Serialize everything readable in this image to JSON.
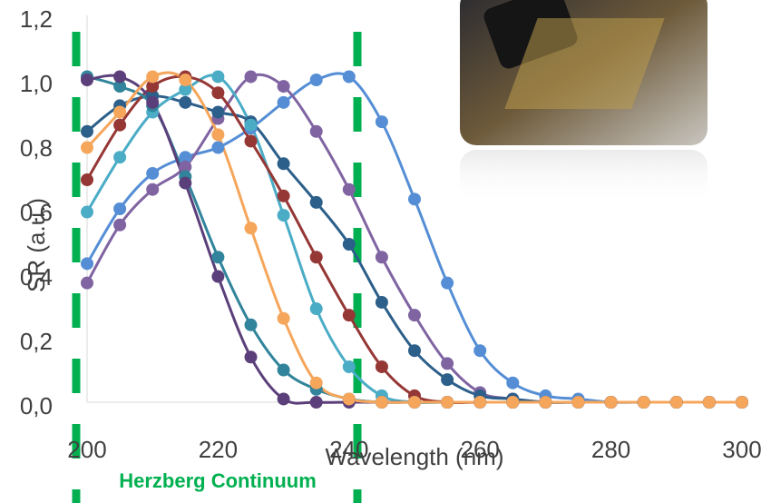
{
  "chart_data": {
    "type": "line",
    "x_label": "Wavelength (nm)",
    "y_label": "SR (a.u.)",
    "annotation": "Herzberg Continuum",
    "x": [
      200,
      205,
      210,
      215,
      220,
      225,
      230,
      235,
      240,
      245,
      250,
      255,
      260,
      265,
      270,
      275,
      280,
      285,
      290,
      295,
      300
    ],
    "xlim": [
      200,
      300
    ],
    "xticks": [
      200,
      220,
      240,
      260,
      280,
      300
    ],
    "ylim": [
      0,
      1.2
    ],
    "yticks": [
      {
        "value": 0,
        "label": "0,0"
      },
      {
        "value": 0.2,
        "label": "0,2"
      },
      {
        "value": 0.4,
        "label": "0,4"
      },
      {
        "value": 0.6,
        "label": "0,6"
      },
      {
        "value": 0.8,
        "label": "0,8"
      },
      {
        "value": 1.0,
        "label": "1,0"
      },
      {
        "value": 1.2,
        "label": "1,2"
      }
    ],
    "series": [
      {
        "color": "#558ed5",
        "values": [
          0.43,
          0.6,
          0.71,
          0.76,
          0.79,
          0.85,
          0.93,
          1.0,
          1.01,
          0.87,
          0.63,
          0.37,
          0.16,
          0.06,
          0.02,
          0.01,
          0,
          0,
          0,
          0,
          0
        ]
      },
      {
        "color": "#8064a2",
        "values": [
          0.37,
          0.55,
          0.66,
          0.73,
          0.88,
          1.01,
          0.98,
          0.84,
          0.66,
          0.45,
          0.27,
          0.12,
          0.03,
          0.01,
          0,
          0,
          0,
          0,
          0,
          0,
          0
        ]
      },
      {
        "color": "#2c5f8a",
        "values": [
          0.84,
          0.92,
          0.95,
          0.93,
          0.9,
          0.87,
          0.74,
          0.62,
          0.49,
          0.31,
          0.16,
          0.07,
          0.02,
          0.01,
          0,
          0,
          0,
          0,
          0,
          0,
          0
        ]
      },
      {
        "color": "#4bacc6",
        "values": [
          0.59,
          0.76,
          0.9,
          0.97,
          1.01,
          0.86,
          0.58,
          0.29,
          0.11,
          0.02,
          0,
          0,
          0,
          0,
          0,
          0,
          0,
          0,
          0,
          0,
          0
        ]
      },
      {
        "color": "#953735",
        "values": [
          0.69,
          0.86,
          0.98,
          1.01,
          0.96,
          0.81,
          0.64,
          0.45,
          0.27,
          0.11,
          0.02,
          0,
          0,
          0,
          0,
          0,
          0,
          0,
          0,
          0,
          0
        ]
      },
      {
        "color": "#31849b",
        "values": [
          1.01,
          0.98,
          0.92,
          0.7,
          0.45,
          0.24,
          0.1,
          0.04,
          0.01,
          0,
          0,
          0,
          0,
          0,
          0,
          0,
          0,
          0,
          0,
          0,
          0
        ]
      },
      {
        "color": "#5b3f7a",
        "values": [
          1.0,
          1.01,
          0.93,
          0.68,
          0.39,
          0.14,
          0.01,
          0,
          0,
          0,
          0,
          0,
          0,
          0,
          0,
          0,
          0,
          0,
          0,
          0,
          0
        ]
      },
      {
        "color": "#f5a65b",
        "values": [
          0.79,
          0.9,
          1.01,
          1.0,
          0.83,
          0.54,
          0.26,
          0.06,
          0.01,
          0,
          0,
          0,
          0,
          0,
          0,
          0,
          0,
          0,
          0,
          0,
          0
        ]
      }
    ]
  }
}
